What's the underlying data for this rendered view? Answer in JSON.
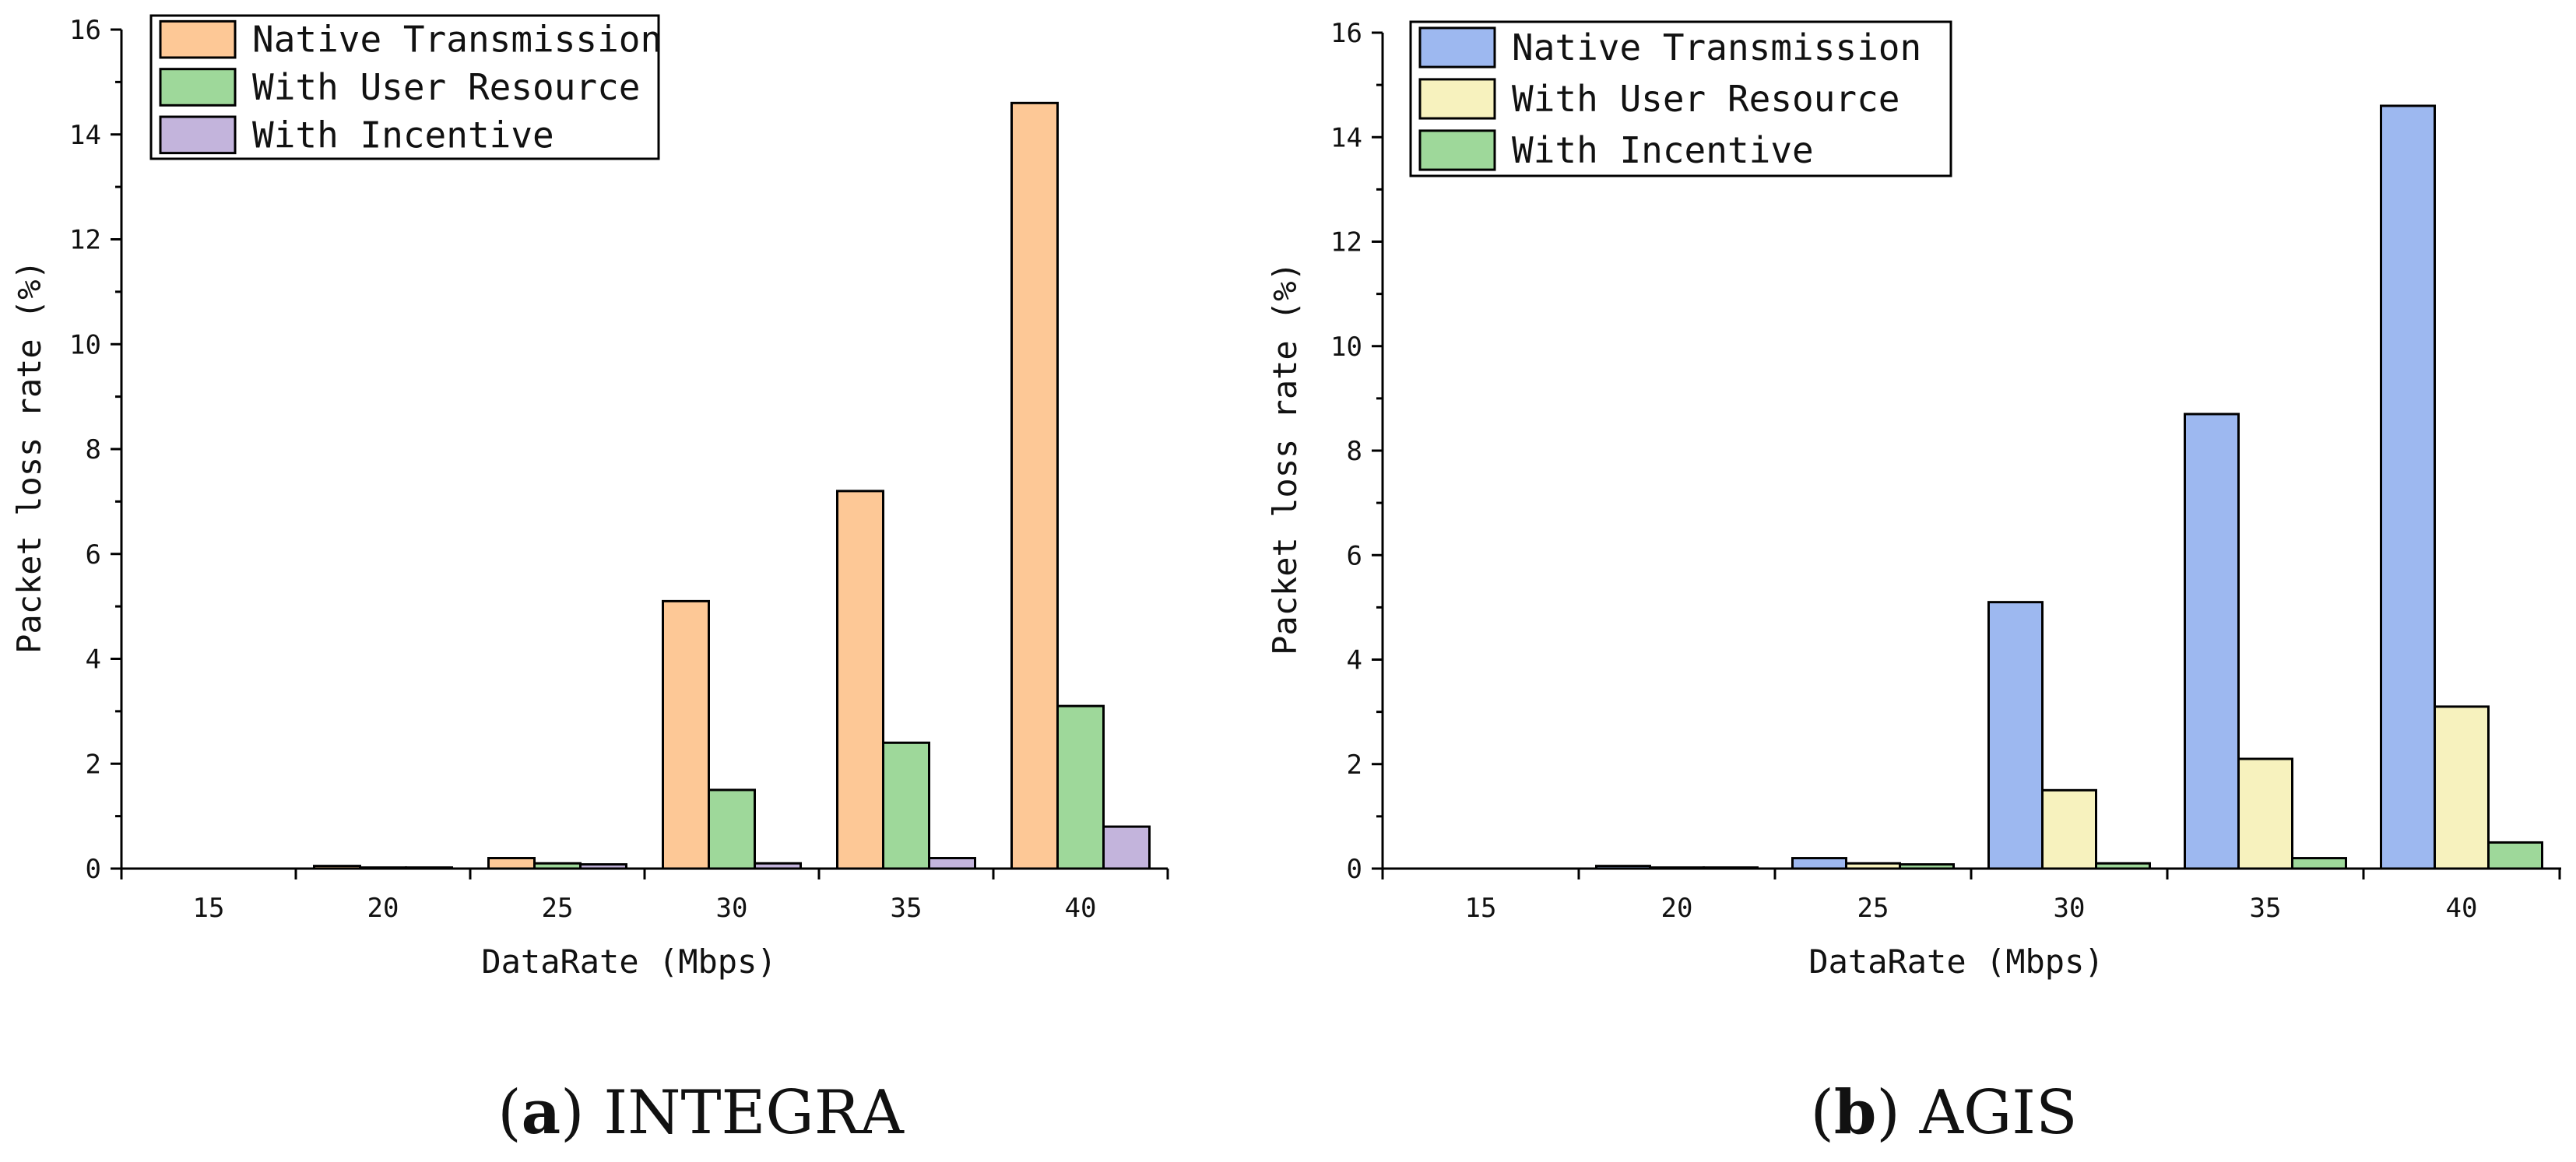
{
  "chart_data": [
    {
      "type": "bar",
      "caption_letter": "a",
      "caption_text": " INTEGRA",
      "xlabel": "DataRate (Mbps)",
      "ylabel": "Packet loss rate (%)",
      "categories": [
        "15",
        "20",
        "25",
        "30",
        "35",
        "40"
      ],
      "ylim": [
        0,
        16
      ],
      "yticks": [
        "0",
        "2",
        "4",
        "6",
        "8",
        "10",
        "12",
        "14",
        "16"
      ],
      "legend_position": "top-left",
      "series": [
        {
          "name": "Native Transmission",
          "color": "#FDC896",
          "values": [
            0,
            0.05,
            0.2,
            5.1,
            7.2,
            14.6
          ]
        },
        {
          "name": "With User Resource",
          "color": "#9ED89A",
          "values": [
            0,
            0.02,
            0.1,
            1.5,
            2.4,
            3.1
          ]
        },
        {
          "name": "With Incentive",
          "color": "#C3B4DC",
          "values": [
            0,
            0.02,
            0.08,
            0.1,
            0.2,
            0.8
          ]
        }
      ]
    },
    {
      "type": "bar",
      "caption_letter": "b",
      "caption_text": " AGIS",
      "xlabel": "DataRate (Mbps)",
      "ylabel": "Packet loss rate (%)",
      "categories": [
        "15",
        "20",
        "25",
        "30",
        "35",
        "40"
      ],
      "ylim": [
        0,
        16
      ],
      "yticks": [
        "0",
        "2",
        "4",
        "6",
        "8",
        "10",
        "12",
        "14",
        "16"
      ],
      "legend_position": "top-left",
      "series": [
        {
          "name": "Native Transmission",
          "color": "#9DB8F0",
          "values": [
            0,
            0.05,
            0.2,
            5.1,
            8.7,
            14.6
          ]
        },
        {
          "name": "With User Resource",
          "color": "#F7F2BE",
          "values": [
            0,
            0.02,
            0.1,
            1.5,
            2.1,
            3.1
          ]
        },
        {
          "name": "With Incentive",
          "color": "#9ED89A",
          "values": [
            0,
            0.02,
            0.08,
            0.1,
            0.2,
            0.5
          ]
        }
      ]
    }
  ]
}
